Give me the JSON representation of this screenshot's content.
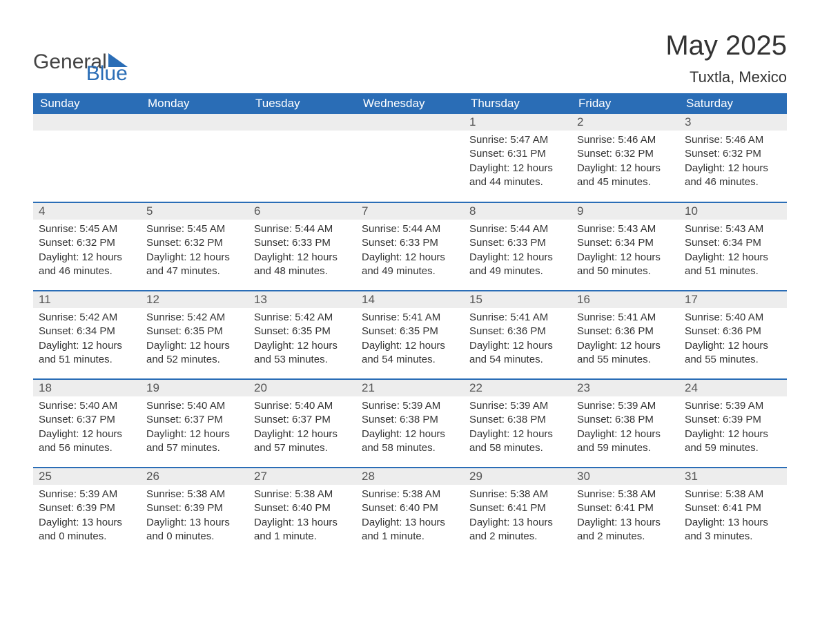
{
  "logo": {
    "word1": "General",
    "word2": "Blue"
  },
  "header": {
    "month_title": "May 2025",
    "location": "Tuxtla, Mexico"
  },
  "colors": {
    "header_bg": "#2a6db6",
    "header_text": "#ffffff",
    "daynum_bg": "#ededed",
    "body_text": "#333333",
    "logo_blue": "#2a6db6",
    "page_bg": "#ffffff"
  },
  "day_headers": [
    "Sunday",
    "Monday",
    "Tuesday",
    "Wednesday",
    "Thursday",
    "Friday",
    "Saturday"
  ],
  "weeks": [
    [
      {
        "blank": true
      },
      {
        "blank": true
      },
      {
        "blank": true
      },
      {
        "blank": true
      },
      {
        "n": "1",
        "sunrise": "Sunrise: 5:47 AM",
        "sunset": "Sunset: 6:31 PM",
        "day1": "Daylight: 12 hours",
        "day2": "and 44 minutes."
      },
      {
        "n": "2",
        "sunrise": "Sunrise: 5:46 AM",
        "sunset": "Sunset: 6:32 PM",
        "day1": "Daylight: 12 hours",
        "day2": "and 45 minutes."
      },
      {
        "n": "3",
        "sunrise": "Sunrise: 5:46 AM",
        "sunset": "Sunset: 6:32 PM",
        "day1": "Daylight: 12 hours",
        "day2": "and 46 minutes."
      }
    ],
    [
      {
        "n": "4",
        "sunrise": "Sunrise: 5:45 AM",
        "sunset": "Sunset: 6:32 PM",
        "day1": "Daylight: 12 hours",
        "day2": "and 46 minutes."
      },
      {
        "n": "5",
        "sunrise": "Sunrise: 5:45 AM",
        "sunset": "Sunset: 6:32 PM",
        "day1": "Daylight: 12 hours",
        "day2": "and 47 minutes."
      },
      {
        "n": "6",
        "sunrise": "Sunrise: 5:44 AM",
        "sunset": "Sunset: 6:33 PM",
        "day1": "Daylight: 12 hours",
        "day2": "and 48 minutes."
      },
      {
        "n": "7",
        "sunrise": "Sunrise: 5:44 AM",
        "sunset": "Sunset: 6:33 PM",
        "day1": "Daylight: 12 hours",
        "day2": "and 49 minutes."
      },
      {
        "n": "8",
        "sunrise": "Sunrise: 5:44 AM",
        "sunset": "Sunset: 6:33 PM",
        "day1": "Daylight: 12 hours",
        "day2": "and 49 minutes."
      },
      {
        "n": "9",
        "sunrise": "Sunrise: 5:43 AM",
        "sunset": "Sunset: 6:34 PM",
        "day1": "Daylight: 12 hours",
        "day2": "and 50 minutes."
      },
      {
        "n": "10",
        "sunrise": "Sunrise: 5:43 AM",
        "sunset": "Sunset: 6:34 PM",
        "day1": "Daylight: 12 hours",
        "day2": "and 51 minutes."
      }
    ],
    [
      {
        "n": "11",
        "sunrise": "Sunrise: 5:42 AM",
        "sunset": "Sunset: 6:34 PM",
        "day1": "Daylight: 12 hours",
        "day2": "and 51 minutes."
      },
      {
        "n": "12",
        "sunrise": "Sunrise: 5:42 AM",
        "sunset": "Sunset: 6:35 PM",
        "day1": "Daylight: 12 hours",
        "day2": "and 52 minutes."
      },
      {
        "n": "13",
        "sunrise": "Sunrise: 5:42 AM",
        "sunset": "Sunset: 6:35 PM",
        "day1": "Daylight: 12 hours",
        "day2": "and 53 minutes."
      },
      {
        "n": "14",
        "sunrise": "Sunrise: 5:41 AM",
        "sunset": "Sunset: 6:35 PM",
        "day1": "Daylight: 12 hours",
        "day2": "and 54 minutes."
      },
      {
        "n": "15",
        "sunrise": "Sunrise: 5:41 AM",
        "sunset": "Sunset: 6:36 PM",
        "day1": "Daylight: 12 hours",
        "day2": "and 54 minutes."
      },
      {
        "n": "16",
        "sunrise": "Sunrise: 5:41 AM",
        "sunset": "Sunset: 6:36 PM",
        "day1": "Daylight: 12 hours",
        "day2": "and 55 minutes."
      },
      {
        "n": "17",
        "sunrise": "Sunrise: 5:40 AM",
        "sunset": "Sunset: 6:36 PM",
        "day1": "Daylight: 12 hours",
        "day2": "and 55 minutes."
      }
    ],
    [
      {
        "n": "18",
        "sunrise": "Sunrise: 5:40 AM",
        "sunset": "Sunset: 6:37 PM",
        "day1": "Daylight: 12 hours",
        "day2": "and 56 minutes."
      },
      {
        "n": "19",
        "sunrise": "Sunrise: 5:40 AM",
        "sunset": "Sunset: 6:37 PM",
        "day1": "Daylight: 12 hours",
        "day2": "and 57 minutes."
      },
      {
        "n": "20",
        "sunrise": "Sunrise: 5:40 AM",
        "sunset": "Sunset: 6:37 PM",
        "day1": "Daylight: 12 hours",
        "day2": "and 57 minutes."
      },
      {
        "n": "21",
        "sunrise": "Sunrise: 5:39 AM",
        "sunset": "Sunset: 6:38 PM",
        "day1": "Daylight: 12 hours",
        "day2": "and 58 minutes."
      },
      {
        "n": "22",
        "sunrise": "Sunrise: 5:39 AM",
        "sunset": "Sunset: 6:38 PM",
        "day1": "Daylight: 12 hours",
        "day2": "and 58 minutes."
      },
      {
        "n": "23",
        "sunrise": "Sunrise: 5:39 AM",
        "sunset": "Sunset: 6:38 PM",
        "day1": "Daylight: 12 hours",
        "day2": "and 59 minutes."
      },
      {
        "n": "24",
        "sunrise": "Sunrise: 5:39 AM",
        "sunset": "Sunset: 6:39 PM",
        "day1": "Daylight: 12 hours",
        "day2": "and 59 minutes."
      }
    ],
    [
      {
        "n": "25",
        "sunrise": "Sunrise: 5:39 AM",
        "sunset": "Sunset: 6:39 PM",
        "day1": "Daylight: 13 hours",
        "day2": "and 0 minutes."
      },
      {
        "n": "26",
        "sunrise": "Sunrise: 5:38 AM",
        "sunset": "Sunset: 6:39 PM",
        "day1": "Daylight: 13 hours",
        "day2": "and 0 minutes."
      },
      {
        "n": "27",
        "sunrise": "Sunrise: 5:38 AM",
        "sunset": "Sunset: 6:40 PM",
        "day1": "Daylight: 13 hours",
        "day2": "and 1 minute."
      },
      {
        "n": "28",
        "sunrise": "Sunrise: 5:38 AM",
        "sunset": "Sunset: 6:40 PM",
        "day1": "Daylight: 13 hours",
        "day2": "and 1 minute."
      },
      {
        "n": "29",
        "sunrise": "Sunrise: 5:38 AM",
        "sunset": "Sunset: 6:41 PM",
        "day1": "Daylight: 13 hours",
        "day2": "and 2 minutes."
      },
      {
        "n": "30",
        "sunrise": "Sunrise: 5:38 AM",
        "sunset": "Sunset: 6:41 PM",
        "day1": "Daylight: 13 hours",
        "day2": "and 2 minutes."
      },
      {
        "n": "31",
        "sunrise": "Sunrise: 5:38 AM",
        "sunset": "Sunset: 6:41 PM",
        "day1": "Daylight: 13 hours",
        "day2": "and 3 minutes."
      }
    ]
  ]
}
